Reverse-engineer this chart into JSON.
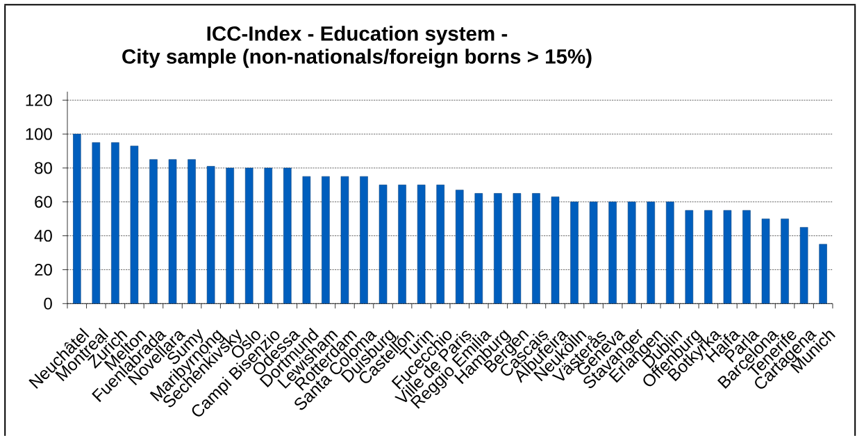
{
  "chart_data": {
    "type": "bar",
    "title": "ICC-Index - Education system - City sample (non-nationals/foreign borns > 15%)",
    "categories": [
      "Neuchâtel",
      "Montreal",
      "Zurich",
      "Melton",
      "Fuenlabrada",
      "Novellara",
      "Sumy",
      "Maribyrnong",
      "Sechenkivsky",
      "Oslo",
      "Campi Bisenzio",
      "Odessa",
      "Dortmund",
      "Lewisham",
      "Rotterdam",
      "Santa Coloma",
      "Duisburg",
      "Castellón",
      "Turin",
      "Fucecchio",
      "Ville de Paris",
      "Reggio Emilia",
      "Hamburg",
      "Bergen",
      "Cascais",
      "Albufeira",
      "Neukölln",
      "Västerås",
      "Geneva",
      "Stavanger",
      "Erlangen",
      "Dublin",
      "Offenburg",
      "Botkyrka",
      "Haifa",
      "Parla",
      "Barcelona",
      "Tenerife",
      "Cartagena",
      "Munich"
    ],
    "values": [
      100,
      95,
      95,
      93,
      85,
      85,
      85,
      81,
      80,
      80,
      80,
      80,
      75,
      75,
      75,
      75,
      70,
      70,
      70,
      70,
      67,
      65,
      65,
      65,
      65,
      63,
      60,
      60,
      60,
      60,
      60,
      60,
      55,
      55,
      55,
      55,
      50,
      50,
      45,
      35
    ],
    "color": "#005EBD",
    "ylim": [
      0,
      125
    ],
    "yticks": [
      0,
      20,
      40,
      60,
      80,
      100,
      120
    ],
    "grid": "y"
  }
}
